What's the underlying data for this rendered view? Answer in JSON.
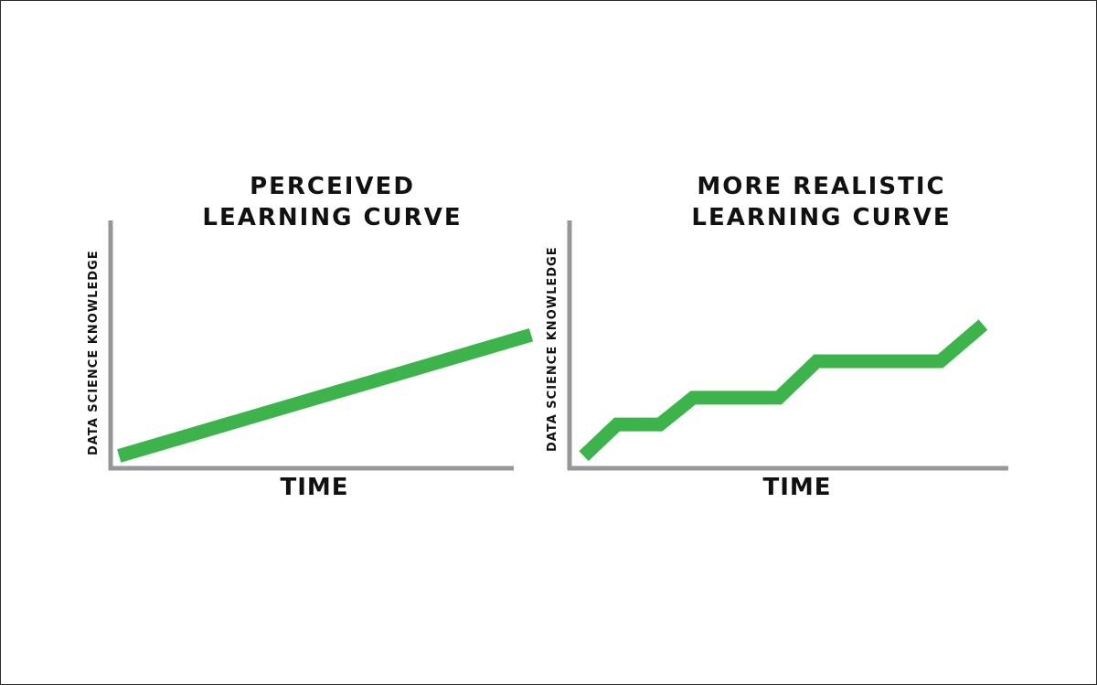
{
  "chart_data": [
    {
      "type": "line",
      "title": "PERCEIVED LEARNING CURVE",
      "xlabel": "TIME",
      "ylabel": "DATA SCIENCE KNOWLEDGE",
      "grid": false,
      "colors": {
        "line": "#3cb44b",
        "axis": "#97979b"
      },
      "xlim": [
        0,
        100
      ],
      "ylim": [
        0,
        100
      ],
      "series": [
        {
          "x": [
            2,
            100
          ],
          "y": [
            5,
            54
          ]
        }
      ]
    },
    {
      "type": "line",
      "title": "MORE REALISTIC LEARNING CURVE",
      "xlabel": "TIME",
      "ylabel": "DATA SCIENCE KNOWLEDGE",
      "grid": false,
      "colors": {
        "line": "#3cb44b",
        "axis": "#97979b"
      },
      "xlim": [
        0,
        100
      ],
      "ylim": [
        0,
        100
      ],
      "series": [
        {
          "x": [
            3,
            10,
            19,
            26,
            44,
            52,
            78,
            87
          ],
          "y": [
            5,
            18,
            18,
            29,
            29,
            44,
            44,
            59
          ]
        }
      ]
    }
  ]
}
